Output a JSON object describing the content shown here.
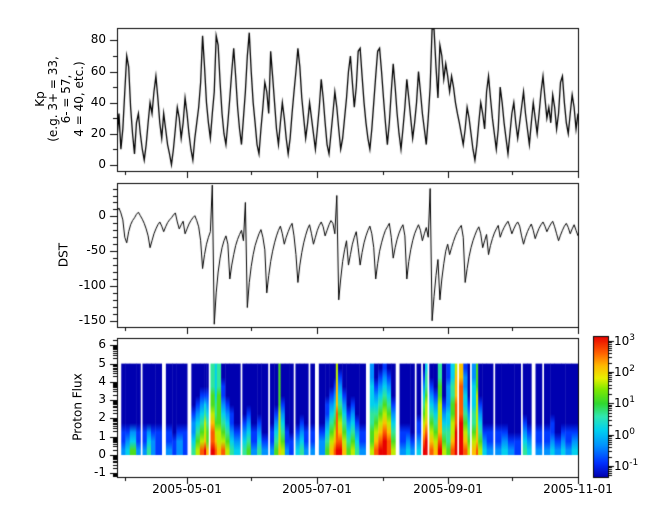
{
  "figure": {
    "bg": "#ffffff",
    "text_color": "#000000"
  },
  "chart_data": {
    "x_axis": {
      "range_days": [
        0,
        217
      ],
      "major_days": [
        33,
        94,
        156,
        217
      ],
      "minor_days": [
        4,
        63,
        125,
        186
      ],
      "tick_labels": [
        "2005-05-01",
        "2005-07-01",
        "2005-09-01",
        "2005-11-01"
      ]
    },
    "panels": [
      {
        "type": "line",
        "name": "kp",
        "ylabel_lines": [
          "Kp",
          "(e.g. 3+ = 33,",
          "6- = 57,",
          "4 = 40, etc.)"
        ],
        "ylim": [
          -4,
          88
        ],
        "yticks": [
          0,
          20,
          40,
          60,
          80
        ],
        "ytick_labels": [
          "0",
          "20",
          "40",
          "60",
          "80"
        ],
        "yminor_step": 10,
        "line_color": "#000000",
        "values": [
          17,
          33,
          10,
          23,
          47,
          70,
          63,
          37,
          20,
          7,
          27,
          33,
          20,
          10,
          3,
          13,
          27,
          40,
          33,
          47,
          57,
          43,
          27,
          17,
          33,
          23,
          13,
          7,
          0,
          10,
          23,
          37,
          30,
          17,
          27,
          43,
          33,
          20,
          10,
          3,
          17,
          27,
          37,
          53,
          83,
          63,
          40,
          27,
          17,
          33,
          47,
          83,
          77,
          53,
          33,
          20,
          13,
          27,
          43,
          60,
          75,
          57,
          37,
          23,
          13,
          30,
          47,
          70,
          85,
          60,
          40,
          27,
          13,
          7,
          23,
          37,
          53,
          47,
          33,
          73,
          57,
          40,
          23,
          13,
          27,
          40,
          30,
          17,
          7,
          17,
          33,
          47,
          60,
          75,
          63,
          43,
          30,
          17,
          27,
          40,
          30,
          20,
          10,
          23,
          37,
          55,
          43,
          27,
          13,
          7,
          20,
          33,
          47,
          37,
          23,
          10,
          17,
          30,
          43,
          60,
          70,
          53,
          37,
          50,
          73,
          75,
          57,
          40,
          27,
          17,
          10,
          23,
          40,
          57,
          73,
          75,
          60,
          43,
          27,
          13,
          27,
          47,
          65,
          50,
          33,
          20,
          10,
          23,
          37,
          55,
          43,
          30,
          17,
          27,
          40,
          60,
          47,
          33,
          23,
          13,
          30,
          50,
          88,
          87,
          63,
          43,
          77,
          70,
          55,
          65,
          57,
          47,
          57,
          50,
          40,
          33,
          27,
          20,
          13,
          23,
          37,
          30,
          20,
          10,
          3,
          13,
          27,
          40,
          33,
          23,
          47,
          57,
          43,
          30,
          20,
          10,
          23,
          50,
          40,
          27,
          17,
          7,
          20,
          33,
          40,
          27,
          17,
          27,
          37,
          47,
          33,
          23,
          13,
          27,
          40,
          30,
          20,
          33,
          47,
          57,
          43,
          30,
          37,
          27,
          45,
          37,
          23,
          33,
          53,
          57,
          40,
          27,
          20,
          33,
          45,
          37,
          23,
          33
        ]
      },
      {
        "type": "line",
        "name": "dst",
        "ylabel_lines": [
          "DST"
        ],
        "ylim": [
          -159,
          48
        ],
        "yticks": [
          0,
          -50,
          -100,
          -150
        ],
        "ytick_labels": [
          "0",
          "-50",
          "-100",
          "-150"
        ],
        "yminor_step": 10,
        "line_color": "#000000",
        "values": [
          8,
          12,
          5,
          -5,
          -30,
          -38,
          -22,
          -12,
          -6,
          -2,
          3,
          6,
          1,
          -4,
          -10,
          -18,
          -28,
          -45,
          -35,
          -25,
          -18,
          -12,
          -8,
          -14,
          -22,
          -15,
          -9,
          -5,
          -2,
          2,
          5,
          -8,
          -18,
          -12,
          -7,
          -25,
          -18,
          -11,
          -6,
          -2,
          1,
          -6,
          -15,
          -35,
          -75,
          -55,
          -40,
          -30,
          -22,
          45,
          -155,
          -110,
          -80,
          -60,
          -45,
          -35,
          -28,
          -40,
          -90,
          -70,
          -55,
          -42,
          -33,
          -26,
          -20,
          -35,
          20,
          -131,
          -95,
          -72,
          -55,
          -42,
          -33,
          -25,
          -19,
          -30,
          -48,
          -110,
          -85,
          -65,
          -50,
          -38,
          -28,
          -20,
          -14,
          -25,
          -40,
          -30,
          -22,
          -15,
          -10,
          -28,
          -55,
          -95,
          -70,
          -52,
          -38,
          -27,
          -18,
          -12,
          -25,
          -40,
          -30,
          -20,
          -13,
          -8,
          -15,
          -28,
          -20,
          -12,
          -6,
          -10,
          -25,
          30,
          -120,
          -90,
          -65,
          -48,
          -35,
          -70,
          -55,
          -40,
          -30,
          -22,
          -45,
          -70,
          -52,
          -38,
          -28,
          -20,
          -14,
          -25,
          -45,
          -90,
          -68,
          -50,
          -38,
          -28,
          -20,
          -15,
          -10,
          -30,
          -60,
          -45,
          -33,
          -24,
          -17,
          -12,
          -28,
          -90,
          -65,
          -48,
          -35,
          -25,
          -18,
          -12,
          -20,
          -35,
          -25,
          -16,
          -30,
          40,
          -150,
          -115,
          -85,
          -62,
          -120,
          -90,
          -68,
          -50,
          -40,
          -55,
          -45,
          -36,
          -28,
          -22,
          -17,
          -13,
          -30,
          -95,
          -75,
          -58,
          -45,
          -35,
          -27,
          -20,
          -15,
          -25,
          -45,
          -35,
          -26,
          -55,
          -42,
          -32,
          -24,
          -18,
          -13,
          -30,
          -22,
          -16,
          -11,
          -7,
          -15,
          -25,
          -18,
          -12,
          -8,
          -14,
          -28,
          -40,
          -30,
          -22,
          -16,
          -11,
          -20,
          -32,
          -24,
          -17,
          -12,
          -8,
          -14,
          -22,
          -16,
          -11,
          -7,
          -15,
          -25,
          -35,
          -27,
          -20,
          -14,
          -10,
          -16,
          -25,
          -18,
          -12,
          -20,
          -28
        ]
      },
      {
        "type": "heatmap",
        "name": "proton_flux",
        "ylabel_lines": [
          "Proton Flux"
        ],
        "ylim": [
          -1.2,
          6.4
        ],
        "yticks": [
          6,
          5,
          4,
          3,
          2,
          1,
          0,
          -1
        ],
        "ytick_labels": [
          "6",
          "5",
          "4",
          "3",
          "2",
          "1",
          "0",
          "-1"
        ],
        "data_y_range": [
          0,
          5
        ],
        "value_scale": {
          "digit_range": [
            0,
            9
          ],
          "log10_flux_range": [
            -1,
            3
          ]
        },
        "columns": [
          [
            2,
            null
          ],
          [
            2,
            "2110000000"
          ],
          [
            2,
            "3210000000"
          ],
          [
            3,
            "5320000000"
          ],
          [
            2,
            "2110000000"
          ],
          [
            1,
            null
          ],
          [
            2,
            "2110000000"
          ],
          [
            2,
            "4320000000"
          ],
          [
            2,
            "2210000000"
          ],
          [
            3,
            "1110000000"
          ],
          [
            2,
            null
          ],
          [
            3,
            "2110000000"
          ],
          [
            2,
            "1100000000"
          ],
          [
            3,
            "2210000000"
          ],
          [
            2,
            "1110000000"
          ],
          [
            2,
            null
          ],
          [
            2,
            "4322100000"
          ],
          [
            2,
            "6543210000"
          ],
          [
            2,
            "8654321000"
          ],
          [
            1,
            "9766431000"
          ],
          [
            1,
            "7554321000"
          ],
          [
            1,
            null
          ],
          [
            2,
            "9887655444"
          ],
          [
            1,
            "8765443333"
          ],
          [
            2,
            "7665555444"
          ],
          [
            2,
            "8654321100"
          ],
          [
            2,
            "6543210000"
          ],
          [
            2,
            "4321100000"
          ],
          [
            3,
            "3210000000"
          ],
          [
            1,
            null
          ],
          [
            2,
            "4321000000"
          ],
          [
            2,
            "5432100000"
          ],
          [
            3,
            "2110000000"
          ],
          [
            2,
            "4321000000"
          ],
          [
            3,
            "2100000000"
          ],
          [
            1,
            null
          ],
          [
            2,
            "2110000000"
          ],
          [
            2,
            "5432100000"
          ],
          [
            1,
            "7666655555"
          ],
          [
            2,
            "6543210000"
          ],
          [
            2,
            "2110000000"
          ],
          [
            2,
            "1100000000"
          ],
          [
            1,
            null
          ],
          [
            2,
            "3210000000"
          ],
          [
            2,
            "4321000000"
          ],
          [
            2,
            "2110000000"
          ],
          [
            1,
            null
          ],
          [
            2,
            "2110000000"
          ],
          [
            2,
            null
          ],
          [
            3,
            "2210000000"
          ],
          [
            2,
            "5432110000"
          ],
          [
            2,
            "7654321000"
          ],
          [
            1,
            "8765432100"
          ],
          [
            1,
            "9888877766"
          ],
          [
            2,
            "9876543210"
          ],
          [
            2,
            "7654321000"
          ],
          [
            2,
            "5432100000"
          ],
          [
            2,
            "6543210000"
          ],
          [
            2,
            "4321000000"
          ],
          [
            3,
            "2110000000"
          ],
          [
            2,
            null
          ],
          [
            2,
            "6554433322"
          ],
          [
            2,
            "8765432100"
          ],
          [
            2,
            "9876543210"
          ],
          [
            2,
            "9987654321"
          ],
          [
            2,
            "8876543210"
          ],
          [
            2,
            "6543210000"
          ],
          [
            2,
            null
          ],
          [
            3,
            "2110000000"
          ],
          [
            2,
            "3210000000"
          ],
          [
            2,
            "2100000000"
          ],
          [
            1,
            null
          ],
          [
            2,
            "3211000000"
          ],
          [
            1,
            null
          ],
          [
            1,
            "9876543210"
          ],
          [
            1,
            "9987665443"
          ],
          [
            1,
            null
          ],
          [
            2,
            "8765432100"
          ],
          [
            2,
            "7654321000"
          ],
          [
            2,
            "9877665544"
          ],
          [
            2,
            "6543210000"
          ],
          [
            2,
            "5443322211"
          ],
          [
            2,
            "8766554433"
          ],
          [
            1,
            "9998887776"
          ],
          [
            1,
            null
          ],
          [
            2,
            "9999888877"
          ],
          [
            2,
            "8765433221"
          ],
          [
            1,
            "6543210000"
          ],
          [
            1,
            null
          ],
          [
            2,
            "7654433322"
          ],
          [
            1,
            "8776666555"
          ],
          [
            2,
            "6543210000"
          ],
          [
            2,
            "3210000000"
          ],
          [
            3,
            "2110000000"
          ],
          [
            1,
            null
          ],
          [
            3,
            "2110000000"
          ],
          [
            3,
            "3210000000"
          ],
          [
            3,
            "2100000000"
          ],
          [
            3,
            "1100000000"
          ],
          [
            1,
            null
          ],
          [
            2,
            "4321000000"
          ],
          [
            2,
            "3210000000"
          ],
          [
            2,
            null
          ],
          [
            3,
            "2110000000"
          ],
          [
            1,
            null
          ],
          [
            3,
            "2110000000"
          ],
          [
            2,
            "3211000000"
          ],
          [
            3,
            "2100000000"
          ],
          [
            2,
            "3210000000"
          ],
          [
            3,
            "2110000000"
          ],
          [
            3,
            "3210000000"
          ]
        ]
      }
    ],
    "colorbar": {
      "tick_exponents": [
        3,
        2,
        1,
        0,
        -1
      ],
      "base": "10",
      "log_range": [
        -1.35,
        3.15
      ],
      "stops": [
        [
          0,
          "#0000b0"
        ],
        [
          0.1,
          "#0030ff"
        ],
        [
          0.22,
          "#0090ff"
        ],
        [
          0.33,
          "#00d0f0"
        ],
        [
          0.43,
          "#30e8b0"
        ],
        [
          0.52,
          "#30d830"
        ],
        [
          0.62,
          "#80e800"
        ],
        [
          0.7,
          "#e8f000"
        ],
        [
          0.79,
          "#ffb800"
        ],
        [
          0.88,
          "#ff6000"
        ],
        [
          1,
          "#e80000"
        ]
      ]
    }
  }
}
